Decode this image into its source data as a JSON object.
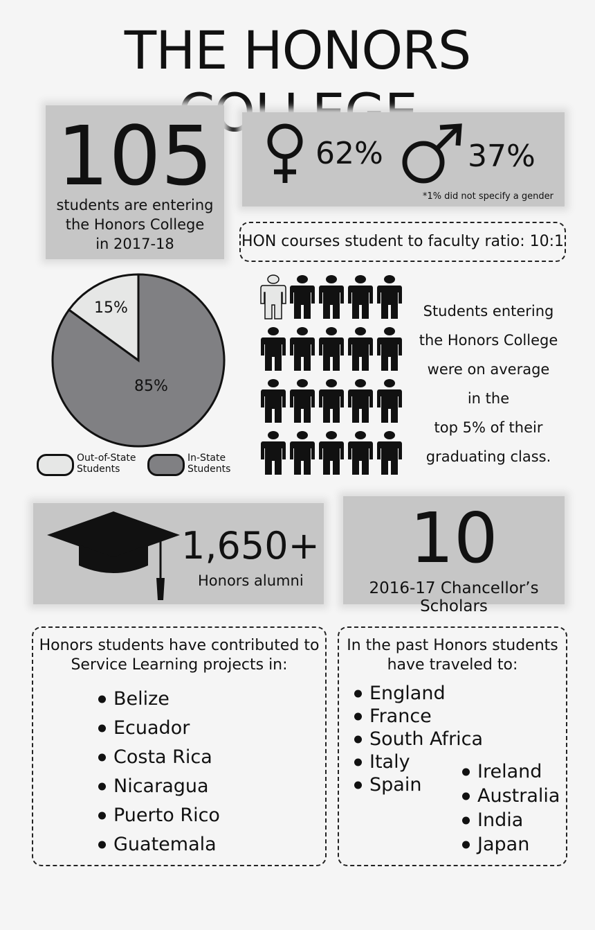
{
  "title": "THE HONORS COLLEGE",
  "entering": {
    "number": "105",
    "line1": "students are entering",
    "line2": "the Honors College",
    "line3": "in 2017-18"
  },
  "gender": {
    "female_icon": "female-symbol-icon",
    "female_pct": "62%",
    "male_icon": "male-symbol-icon",
    "male_pct": "37%",
    "note": "*1% did not specify a gender"
  },
  "ratio": "HON courses student to faculty ratio: 10:1",
  "chart_data": {
    "type": "pie",
    "slices": [
      {
        "name": "Out-of-State Students",
        "value": 15,
        "label": "15%",
        "color": "#e6e7e6"
      },
      {
        "name": "In-State Students",
        "value": 85,
        "label": "85%",
        "color": "#808083"
      }
    ],
    "legend": [
      "Out-of-State",
      "Students",
      "In-State",
      "Students"
    ],
    "legend_placement": "bottom"
  },
  "people": {
    "total": 20,
    "highlighted": 1,
    "icon": "person-icon"
  },
  "top5": [
    "Students entering",
    "the Honors College",
    "were on average",
    "in the",
    "top 5% of their",
    "graduating class."
  ],
  "alumni": {
    "icon": "graduation-cap-icon",
    "number": "1,650+",
    "label": "Honors alumni"
  },
  "scholars": {
    "number": "10",
    "label": "2016-17 Chancellor’s Scholars"
  },
  "service": {
    "heading1": "Honors students have contributed to",
    "heading2": "Service Learning projects in:",
    "items": [
      "Belize",
      "Ecuador",
      "Costa Rica",
      "Nicaragua",
      "Puerto Rico",
      "Guatemala"
    ]
  },
  "travel": {
    "heading1": "In the past Honors students",
    "heading2": "have traveled to:",
    "col1": [
      "England",
      "France",
      "South Africa",
      "Italy",
      "Spain"
    ],
    "col2": [
      "Ireland",
      "Australia",
      "India",
      "Japan"
    ]
  }
}
